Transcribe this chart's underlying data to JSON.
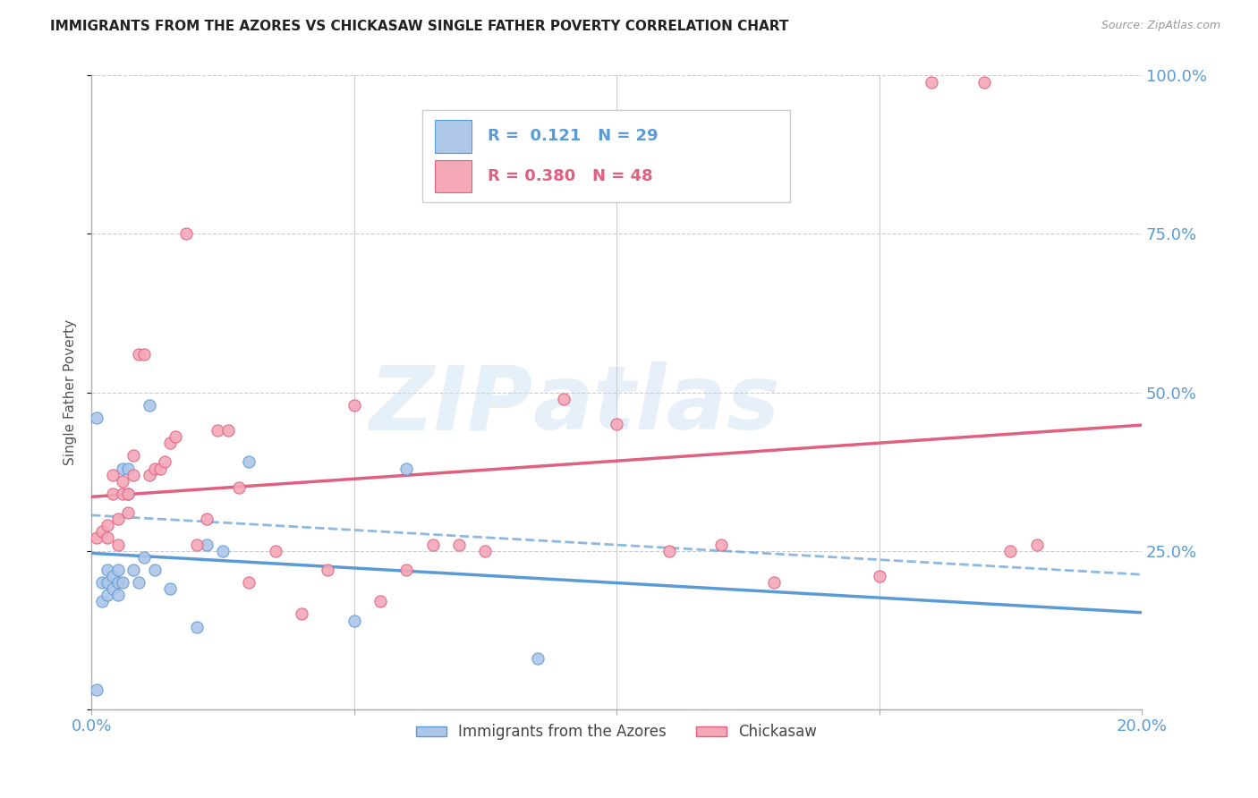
{
  "title": "IMMIGRANTS FROM THE AZORES VS CHICKASAW SINGLE FATHER POVERTY CORRELATION CHART",
  "source": "Source: ZipAtlas.com",
  "ylabel": "Single Father Poverty",
  "legend_label1": "Immigrants from the Azores",
  "legend_label2": "Chickasaw",
  "R1": 0.121,
  "N1": 29,
  "R2": 0.38,
  "N2": 48,
  "xlim": [
    0.0,
    0.2
  ],
  "ylim": [
    0.0,
    1.0
  ],
  "xticks": [
    0.0,
    0.05,
    0.1,
    0.15,
    0.2
  ],
  "yticks": [
    0.0,
    0.25,
    0.5,
    0.75,
    1.0
  ],
  "yticklabels_right": [
    "",
    "25.0%",
    "50.0%",
    "75.0%",
    "100.0%"
  ],
  "color1": "#aec6e8",
  "color2": "#f4a8b8",
  "trendline1_color": "#5b9bd5",
  "trendline2_color": "#e06080",
  "watermark_zip": "ZIP",
  "watermark_atlas": "atlas",
  "background_color": "#ffffff",
  "grid_color": "#cccccc",
  "axis_label_color": "#5b9bd5",
  "azores_x": [
    0.001,
    0.001,
    0.002,
    0.002,
    0.003,
    0.003,
    0.003,
    0.004,
    0.004,
    0.005,
    0.005,
    0.005,
    0.006,
    0.006,
    0.007,
    0.007,
    0.008,
    0.009,
    0.01,
    0.011,
    0.012,
    0.015,
    0.02,
    0.022,
    0.025,
    0.03,
    0.05,
    0.06,
    0.085
  ],
  "azores_y": [
    0.03,
    0.46,
    0.17,
    0.2,
    0.18,
    0.2,
    0.22,
    0.19,
    0.21,
    0.18,
    0.2,
    0.22,
    0.2,
    0.38,
    0.34,
    0.38,
    0.22,
    0.2,
    0.24,
    0.48,
    0.22,
    0.19,
    0.13,
    0.26,
    0.25,
    0.39,
    0.14,
    0.38,
    0.08
  ],
  "chickasaw_x": [
    0.001,
    0.002,
    0.003,
    0.003,
    0.004,
    0.004,
    0.005,
    0.005,
    0.006,
    0.006,
    0.007,
    0.007,
    0.008,
    0.008,
    0.009,
    0.01,
    0.011,
    0.012,
    0.013,
    0.014,
    0.015,
    0.016,
    0.018,
    0.02,
    0.022,
    0.024,
    0.026,
    0.028,
    0.03,
    0.035,
    0.04,
    0.045,
    0.05,
    0.055,
    0.06,
    0.065,
    0.07,
    0.075,
    0.09,
    0.1,
    0.11,
    0.12,
    0.13,
    0.15,
    0.16,
    0.17,
    0.175,
    0.18
  ],
  "chickasaw_y": [
    0.27,
    0.28,
    0.27,
    0.29,
    0.34,
    0.37,
    0.26,
    0.3,
    0.34,
    0.36,
    0.31,
    0.34,
    0.37,
    0.4,
    0.56,
    0.56,
    0.37,
    0.38,
    0.38,
    0.39,
    0.42,
    0.43,
    0.75,
    0.26,
    0.3,
    0.44,
    0.44,
    0.35,
    0.2,
    0.25,
    0.15,
    0.22,
    0.48,
    0.17,
    0.22,
    0.26,
    0.26,
    0.25,
    0.49,
    0.45,
    0.25,
    0.26,
    0.2,
    0.21,
    0.99,
    0.99,
    0.25,
    0.26
  ]
}
